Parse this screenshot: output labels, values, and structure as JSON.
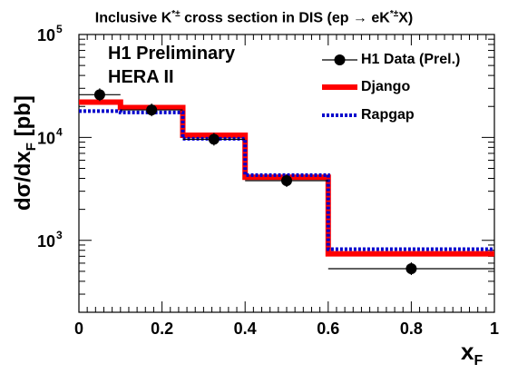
{
  "chart_data": {
    "type": "line",
    "title": {
      "pre": "Inclusive K",
      "sup": "*±",
      "mid": " cross section in DIS (ep → eK",
      "sup2": "*±",
      "post": "X)"
    },
    "annotations": [
      "H1 Preliminary",
      "HERA II"
    ],
    "xlabel": {
      "base": "x",
      "sub": "F"
    },
    "ylabel": {
      "base": "dσ/dx",
      "sub": "F",
      "unit": " [pb]"
    },
    "xlim": [
      0,
      1
    ],
    "ylim": [
      200,
      100000
    ],
    "yscale": "log",
    "x_ticks": [
      "0",
      "0.2",
      "0.4",
      "0.6",
      "0.8",
      "1"
    ],
    "y_ticks": [
      {
        "base": "10",
        "exp": "3",
        "value": 1000
      },
      {
        "base": "10",
        "exp": "4",
        "value": 10000
      },
      {
        "base": "10",
        "exp": "5",
        "value": 100000
      }
    ],
    "bin_edges": [
      0,
      0.1,
      0.25,
      0.4,
      0.6,
      1.0
    ],
    "series": [
      {
        "name": "H1 Data (Prel.)",
        "kind": "points",
        "color": "#000000",
        "x": [
          0.05,
          0.175,
          0.325,
          0.5,
          0.8
        ],
        "values": [
          26000,
          18500,
          9600,
          3800,
          530
        ]
      },
      {
        "name": "Django",
        "kind": "histogram",
        "color": "#ff0000",
        "values": [
          22000,
          19500,
          10500,
          4100,
          740
        ]
      },
      {
        "name": "Rapgap",
        "kind": "histogram",
        "color": "#0000cc",
        "dashed": true,
        "values": [
          18000,
          17500,
          9700,
          4300,
          820
        ]
      }
    ],
    "legend_position": "top-right",
    "grid": false
  }
}
